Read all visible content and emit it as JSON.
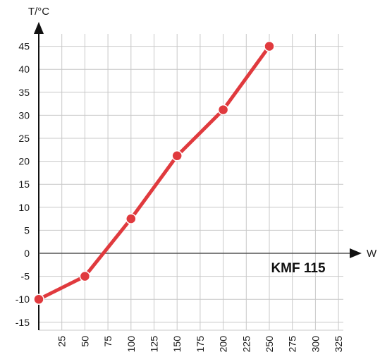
{
  "chart_data": {
    "type": "line",
    "title": "KMF 115",
    "xlabel": "W",
    "ylabel": "T/°C",
    "xlim": [
      0,
      330
    ],
    "ylim": [
      -17,
      47
    ],
    "x_ticks": [
      25,
      50,
      75,
      100,
      125,
      150,
      175,
      200,
      225,
      250,
      275,
      300,
      325
    ],
    "y_ticks": [
      -15,
      -10,
      -5,
      0,
      5,
      10,
      15,
      20,
      25,
      30,
      35,
      40,
      45
    ],
    "grid": true,
    "series": [
      {
        "x": [
          0,
          50,
          100,
          150,
          200,
          250
        ],
        "y": [
          -10,
          -5,
          7.5,
          21.2,
          31.2,
          45
        ],
        "color": "#e03a3e"
      }
    ]
  }
}
